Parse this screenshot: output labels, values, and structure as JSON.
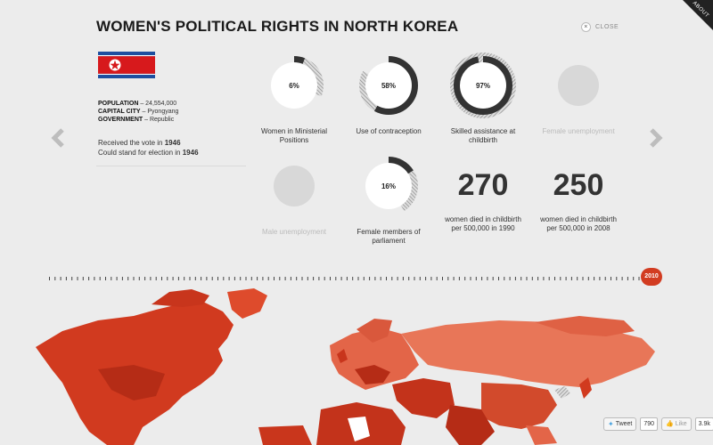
{
  "page": {
    "title": "WOMEN'S POLITICAL RIGHTS IN NORTH KOREA",
    "close_label": "CLOSE",
    "about_label": "ABOUT"
  },
  "country": {
    "population_label": "POPULATION",
    "population_value": "– 24,554,000",
    "capital_label": "CAPITAL CITY",
    "capital_value": "– Pyongyang",
    "government_label": "GOVERNMENT",
    "government_value": "– Republic",
    "vote_text": "Received the vote in",
    "vote_year": "1946",
    "stand_text": "Could stand for election in",
    "stand_year": "1946"
  },
  "stats": [
    {
      "value": "6%",
      "fraction": 0.06,
      "label": "Women in Ministerial Positions"
    },
    {
      "value": "58%",
      "fraction": 0.58,
      "label": "Use of contraception"
    },
    {
      "value": "97%",
      "fraction": 0.97,
      "label": "Skilled assistance at childbirth"
    },
    {
      "value": "",
      "fraction": 0,
      "label": "Female unemployment"
    },
    {
      "value": "",
      "fraction": 0,
      "label": "Male unemployment"
    },
    {
      "value": "16%",
      "fraction": 0.16,
      "label": "Female members of parliament"
    },
    {
      "value": "270",
      "label": "women died in childbirth per 500,000 in 1990"
    },
    {
      "value": "250",
      "label": "women died in childbirth per 500,000 in 2008"
    }
  ],
  "timeline": {
    "year": "2010"
  },
  "social": {
    "tweet_label": "Tweet",
    "tweet_count": "790",
    "like_label": "Like",
    "like_count": "3.9k"
  },
  "colors": {
    "accent": "#d23c21",
    "ring_dark": "#333333",
    "ring_hatch": "#b5b5b5",
    "muted_circle": "#d8d8d8"
  }
}
